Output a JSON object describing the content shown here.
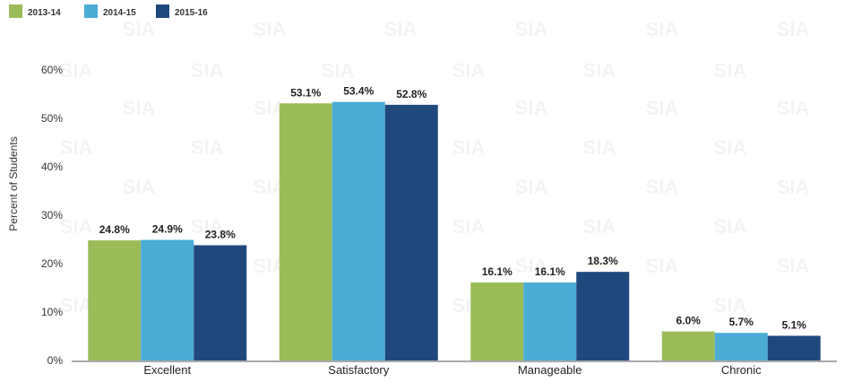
{
  "chart_data": {
    "type": "bar",
    "categories": [
      "Excellent",
      "Satisfactory",
      "Manageable",
      "Chronic"
    ],
    "series": [
      {
        "name": "2013-14",
        "color": "#9bbb59",
        "values": [
          24.8,
          53.1,
          16.1,
          6.0
        ],
        "labels": [
          "24.8%",
          "53.1%",
          "16.1%",
          "6.0%"
        ]
      },
      {
        "name": "2014-15",
        "color": "#4bacd6",
        "values": [
          24.9,
          53.4,
          16.1,
          5.7
        ],
        "labels": [
          "24.9%",
          "53.4%",
          "16.1%",
          "5.7%"
        ]
      },
      {
        "name": "2015-16",
        "color": "#1f497d",
        "values": [
          23.8,
          52.8,
          18.3,
          5.1
        ],
        "labels": [
          "23.8%",
          "52.8%",
          "18.3%",
          "5.1%"
        ]
      }
    ],
    "ylabel": "Percent of Students",
    "ylim": [
      0,
      60
    ],
    "yticks": [
      0,
      10,
      20,
      30,
      40,
      50,
      60
    ],
    "ytick_labels": [
      "0%",
      "10%",
      "20%",
      "30%",
      "40%",
      "50%",
      "60%"
    ],
    "legend": "top-left",
    "grid": false
  },
  "watermark_text": "SIA"
}
